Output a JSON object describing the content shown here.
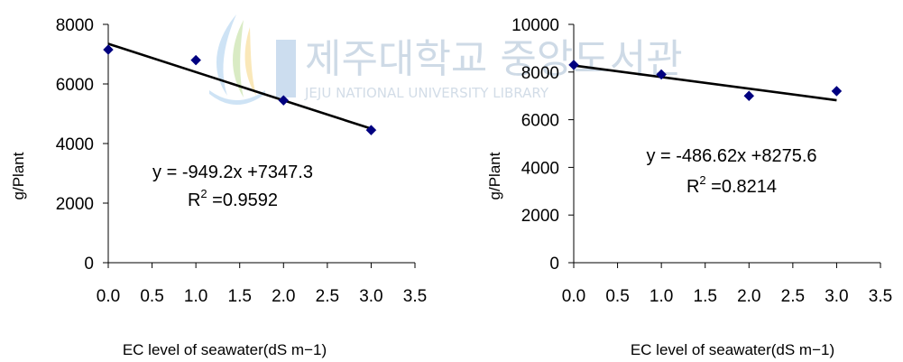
{
  "watermark": {
    "title_ko": "제주대학교 중앙도서관",
    "subtitle": "JEJU NATIONAL UNIVERSITY LIBRARY",
    "logo_colors": [
      "#7fb8e6",
      "#9ccc65",
      "#f3c34a"
    ]
  },
  "chart_data": [
    {
      "type": "scatter",
      "xlabel": "EC level of seawater(dS m−1)",
      "ylabel": "g/Plant",
      "xlim": [
        0,
        3.5
      ],
      "ylim": [
        0,
        8000
      ],
      "x_ticks": [
        "0.0",
        "0.5",
        "1.0",
        "1.5",
        "2.0",
        "2.5",
        "3.0",
        "3.5"
      ],
      "y_ticks": [
        "0",
        "2000",
        "4000",
        "6000",
        "8000"
      ],
      "grid": false,
      "series": [
        {
          "x": [
            0,
            1,
            2,
            3
          ],
          "y": [
            7150,
            6800,
            5450,
            4450
          ],
          "color": "#000080"
        }
      ],
      "trendline": {
        "slope": -949.2,
        "intercept": 7347.3,
        "color": "#000000"
      },
      "equation": "y = -949.2x +7347.3",
      "r2_prefix": "R",
      "r2_sup": "2",
      "r2_value": " =0.9592"
    },
    {
      "type": "scatter",
      "xlabel": "EC level of seawater(dS m−1)",
      "ylabel": "g/Plant",
      "xlim": [
        0,
        3.5
      ],
      "ylim": [
        0,
        10000
      ],
      "x_ticks": [
        "0.0",
        "0.5",
        "1.0",
        "1.5",
        "2.0",
        "2.5",
        "3.0",
        "3.5"
      ],
      "y_ticks": [
        "0",
        "2000",
        "4000",
        "6000",
        "8000",
        "10000"
      ],
      "grid": false,
      "series": [
        {
          "x": [
            0,
            1,
            2,
            3
          ],
          "y": [
            8300,
            7900,
            7000,
            7200
          ],
          "color": "#000080"
        }
      ],
      "trendline": {
        "slope": -486.62,
        "intercept": 8275.6,
        "color": "#000000"
      },
      "equation": "y = -486.62x +8275.6",
      "r2_prefix": "R",
      "r2_sup": "2",
      "r2_value": " =0.8214"
    }
  ]
}
